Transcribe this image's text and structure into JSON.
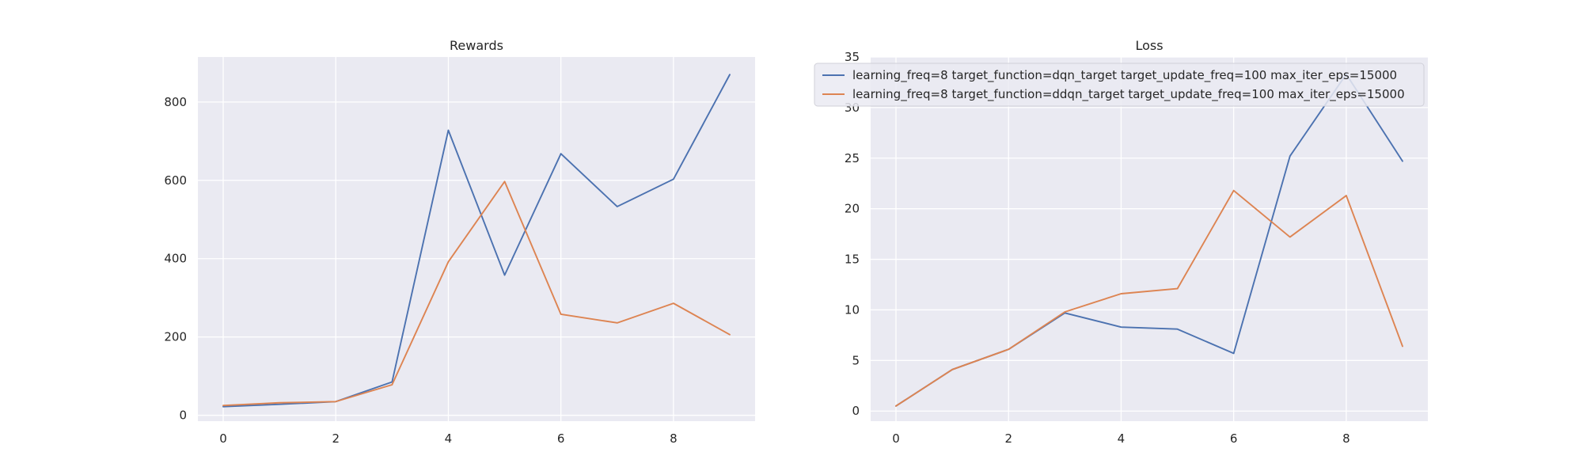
{
  "chart_data": [
    {
      "type": "line",
      "title": "Rewards",
      "xlabel": "",
      "ylabel": "",
      "xlim": [
        -0.45,
        9.45
      ],
      "ylim": [
        -15,
        915
      ],
      "xticks": [
        0,
        2,
        4,
        6,
        8
      ],
      "yticks": [
        0,
        200,
        400,
        600,
        800
      ],
      "grid": true,
      "x": [
        0,
        1,
        2,
        3,
        4,
        5,
        6,
        7,
        8,
        9
      ],
      "series": [
        {
          "color": "#4c72b0",
          "values": [
            22,
            28,
            35,
            85,
            728,
            358,
            668,
            533,
            603,
            870
          ]
        },
        {
          "color": "#dd8452",
          "values": [
            25,
            32,
            35,
            78,
            392,
            597,
            258,
            236,
            286,
            206
          ]
        }
      ]
    },
    {
      "type": "line",
      "title": "Loss",
      "xlabel": "",
      "ylabel": "",
      "xlim": [
        -0.45,
        9.45
      ],
      "ylim": [
        -1,
        35
      ],
      "xticks": [
        0,
        2,
        4,
        6,
        8
      ],
      "yticks": [
        0,
        5,
        10,
        15,
        20,
        25,
        30,
        35
      ],
      "grid": true,
      "legend_position": "top-right",
      "x": [
        0,
        1,
        2,
        3,
        4,
        5,
        6,
        7,
        8,
        9
      ],
      "series": [
        {
          "name": "learning_freq=8 target_function=dqn_target target_update_freq=100 max_iter_eps=15000",
          "color": "#4c72b0",
          "values": [
            0.5,
            4.1,
            6.1,
            9.7,
            8.3,
            8.1,
            5.7,
            25.2,
            33.3,
            24.7
          ]
        },
        {
          "name": "learning_freq=8 target_function=ddqn_target target_update_freq=100 max_iter_eps=15000",
          "color": "#dd8452",
          "values": [
            0.5,
            4.1,
            6.1,
            9.8,
            11.6,
            12.1,
            21.8,
            17.2,
            21.3,
            6.4
          ]
        }
      ]
    }
  ]
}
